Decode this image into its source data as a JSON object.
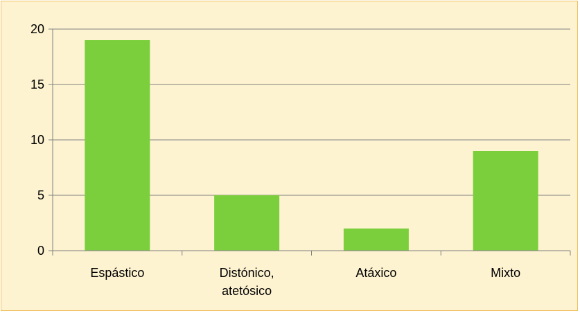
{
  "chart_data": {
    "type": "bar",
    "title": "",
    "xlabel": "",
    "ylabel": "",
    "categories": [
      [
        "Espástico"
      ],
      [
        "Distónico,",
        "atetósico"
      ],
      [
        "Atáxico"
      ],
      [
        "Mixto"
      ]
    ],
    "values": [
      19,
      5,
      2,
      9
    ],
    "ylim": [
      0,
      20
    ],
    "yticks": [
      0,
      5,
      10,
      15,
      20
    ],
    "grid": true,
    "legend": "none",
    "colors": {
      "bar": "#7ccf3c",
      "background": "#fef3d1",
      "border": "#f0c060",
      "gridline": "#808080"
    }
  }
}
